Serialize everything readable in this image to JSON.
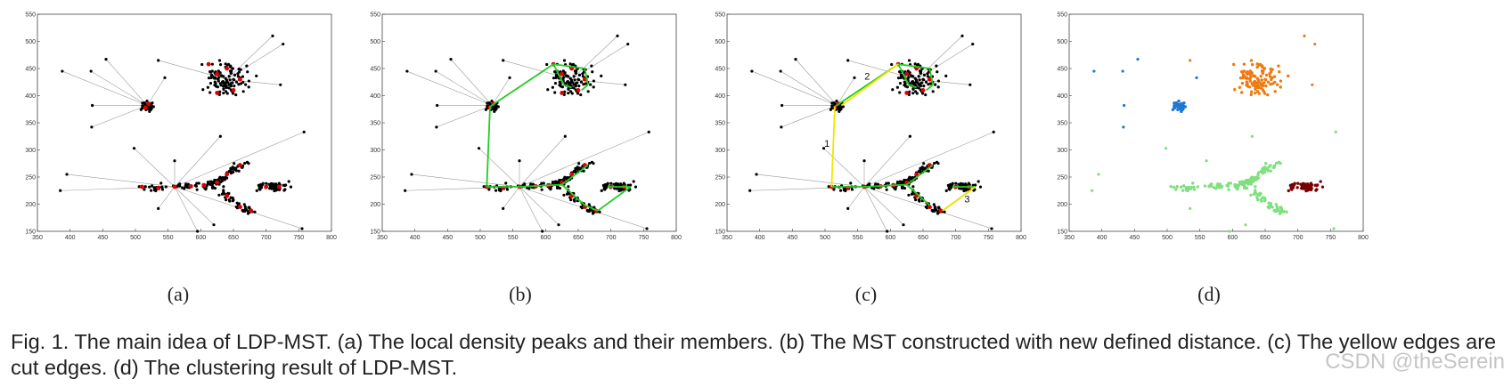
{
  "figure": {
    "panels": [
      {
        "label": "(a)"
      },
      {
        "label": "(b)"
      },
      {
        "label": "(c)"
      },
      {
        "label": "(d)"
      }
    ],
    "caption": "Fig. 1. The main idea of LDP-MST. (a) The local density peaks and their members. (b) The MST constructed with new defined distance. (c) The yellow edges are cut edges. (d) The clustering result of LDP-MST.",
    "cut_edge_labels": [
      "1",
      "2",
      "3"
    ],
    "watermark": "CSDN @theSerein"
  },
  "colors": {
    "points": "#000000",
    "peaks": "#e00000",
    "members_links": "#9a9a9a",
    "mst_edges": "#22cc22",
    "cut_edges": "#f2e600",
    "cluster1": "#1f77d4",
    "cluster2": "#ee7a10",
    "cluster3": "#7ee07e",
    "cluster4": "#7a0000"
  },
  "chart_data": {
    "type": "scatter",
    "title": "",
    "xlabel": "",
    "ylabel": "",
    "xlim": [
      350,
      800
    ],
    "ylim": [
      150,
      550
    ],
    "xticks": [
      350,
      400,
      450,
      500,
      550,
      600,
      650,
      700,
      750,
      800
    ],
    "yticks": [
      150,
      200,
      250,
      300,
      350,
      400,
      450,
      500,
      550
    ],
    "clusters": [
      {
        "name": "cluster-left-blob",
        "center": [
          518,
          382
        ],
        "spread": [
          7,
          6
        ],
        "count": 45,
        "color_key": "cluster1"
      },
      {
        "name": "cluster-top-right",
        "center": [
          640,
          430
        ],
        "spread": [
          26,
          22
        ],
        "count": 110,
        "color_key": "cluster2"
      },
      {
        "name": "cluster-branch",
        "spine": [
          [
            505,
            232
          ],
          [
            540,
            231
          ],
          [
            580,
            233
          ],
          [
            615,
            234
          ],
          [
            630,
            245
          ],
          [
            650,
            262
          ],
          [
            670,
            276
          ]
        ],
        "lower_arm": [
          [
            630,
            228
          ],
          [
            645,
            210
          ],
          [
            665,
            192
          ],
          [
            680,
            185
          ]
        ],
        "count": 170,
        "color_key": "cluster3"
      },
      {
        "name": "cluster-right-blob",
        "center": [
          710,
          232
        ],
        "spread": [
          18,
          6
        ],
        "count": 60,
        "color_key": "cluster4"
      }
    ],
    "outliers": [
      {
        "x": 388,
        "y": 445,
        "group": 0
      },
      {
        "x": 432,
        "y": 445,
        "group": 0
      },
      {
        "x": 455,
        "y": 467,
        "group": 0
      },
      {
        "x": 434,
        "y": 382,
        "group": 0
      },
      {
        "x": 433,
        "y": 342,
        "group": 0
      },
      {
        "x": 545,
        "y": 433,
        "group": 0
      },
      {
        "x": 535,
        "y": 465,
        "group": 1
      },
      {
        "x": 710,
        "y": 510,
        "group": 1
      },
      {
        "x": 726,
        "y": 495,
        "group": 1
      },
      {
        "x": 722,
        "y": 420,
        "group": 1
      },
      {
        "x": 498,
        "y": 303,
        "group": 2
      },
      {
        "x": 395,
        "y": 255,
        "group": 2
      },
      {
        "x": 385,
        "y": 225,
        "group": 2
      },
      {
        "x": 535,
        "y": 192,
        "group": 2
      },
      {
        "x": 560,
        "y": 280,
        "group": 2
      },
      {
        "x": 630,
        "y": 325,
        "group": 2
      },
      {
        "x": 595,
        "y": 150,
        "group": 2
      },
      {
        "x": 755,
        "y": 155,
        "group": 2
      },
      {
        "x": 758,
        "y": 333,
        "group": 2
      },
      {
        "x": 620,
        "y": 162,
        "group": 2
      }
    ],
    "peaks_approx": [
      [
        515,
        378
      ],
      [
        520,
        385
      ],
      [
        612,
        458
      ],
      [
        625,
        440
      ],
      [
        640,
        450
      ],
      [
        660,
        430
      ],
      [
        650,
        410
      ],
      [
        625,
        405
      ],
      [
        510,
        232
      ],
      [
        535,
        230
      ],
      [
        560,
        232
      ],
      [
        585,
        233
      ],
      [
        605,
        235
      ],
      [
        625,
        240
      ],
      [
        640,
        255
      ],
      [
        660,
        272
      ],
      [
        640,
        215
      ],
      [
        660,
        195
      ],
      [
        677,
        188
      ],
      [
        700,
        232
      ],
      [
        720,
        232
      ]
    ],
    "mst_edges": [
      [
        [
          515,
          380
        ],
        [
          612,
          458
        ]
      ],
      [
        [
          612,
          458
        ],
        [
          660,
          450
        ]
      ],
      [
        [
          660,
          450
        ],
        [
          665,
          420
        ]
      ],
      [
        [
          665,
          420
        ],
        [
          655,
          410
        ]
      ],
      [
        [
          612,
          458
        ],
        [
          628,
          420
        ]
      ],
      [
        [
          628,
          420
        ],
        [
          640,
          415
        ]
      ],
      [
        [
          510,
          232
        ],
        [
          515,
          380
        ]
      ],
      [
        [
          510,
          232
        ],
        [
          560,
          232
        ]
      ],
      [
        [
          560,
          232
        ],
        [
          625,
          236
        ]
      ],
      [
        [
          625,
          236
        ],
        [
          665,
          272
        ]
      ],
      [
        [
          625,
          236
        ],
        [
          660,
          198
        ]
      ],
      [
        [
          660,
          198
        ],
        [
          680,
          188
        ]
      ],
      [
        [
          680,
          188
        ],
        [
          730,
          232
        ]
      ],
      [
        [
          695,
          232
        ],
        [
          730,
          232
        ]
      ]
    ],
    "cut_edges": [
      {
        "label": "1",
        "from": [
          510,
          232
        ],
        "to": [
          515,
          380
        ]
      },
      {
        "label": "2",
        "from": [
          525,
          382
        ],
        "to": [
          612,
          458
        ]
      },
      {
        "label": "3",
        "from": [
          680,
          188
        ],
        "to": [
          730,
          232
        ]
      }
    ]
  }
}
